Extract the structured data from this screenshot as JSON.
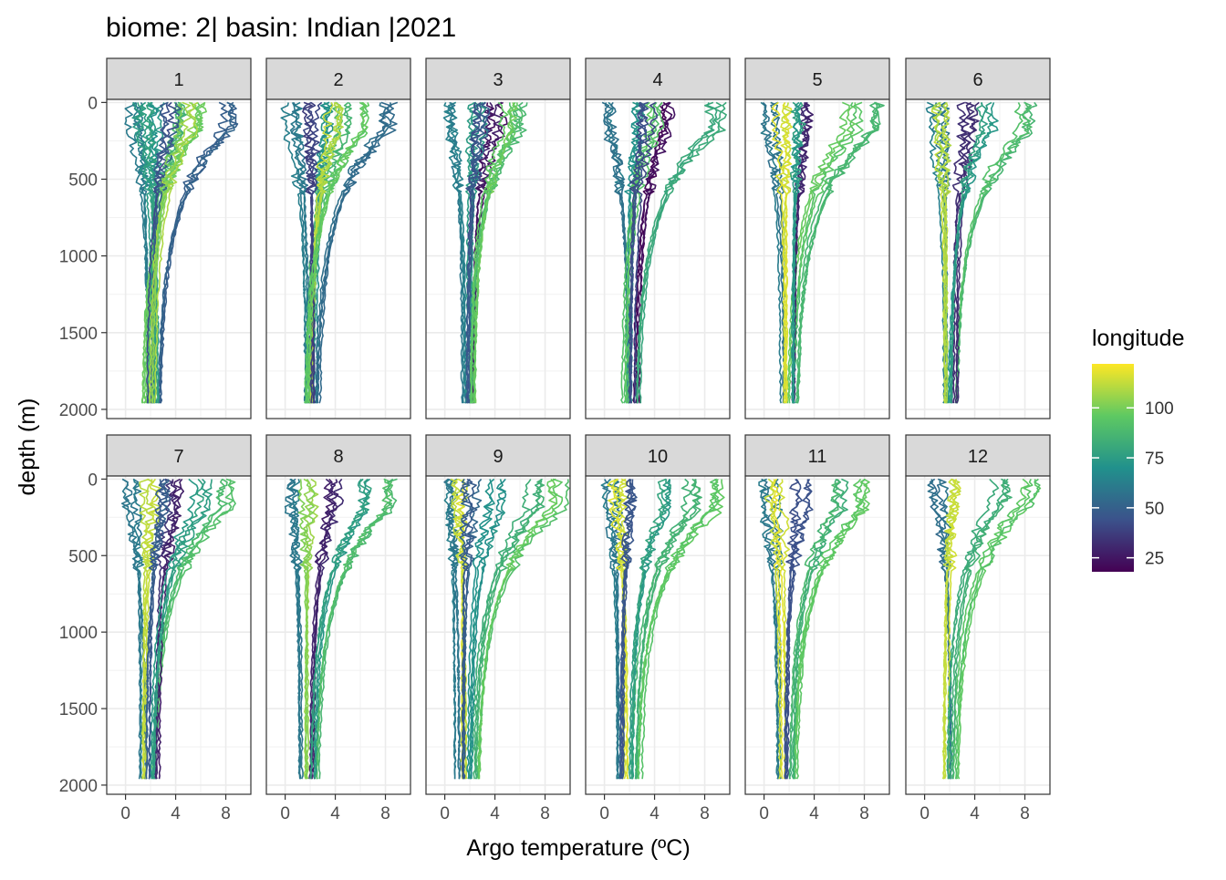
{
  "chart_data": {
    "type": "line",
    "title": "biome: 2| basin: Indian |2021",
    "xlabel": "Argo temperature (ºC)",
    "ylabel": "depth (m)",
    "xlim": [
      -1.5,
      10
    ],
    "ylim": [
      2060,
      -20
    ],
    "x_ticks": [
      0,
      4,
      8
    ],
    "x_tick_labels": [
      "0",
      "4",
      "8"
    ],
    "y_ticks": [
      0,
      500,
      1000,
      1500,
      2000
    ],
    "y_tick_labels": [
      "0",
      "500",
      "1000",
      "1500",
      "2000"
    ],
    "y_reversed": true,
    "grid": true,
    "legend": {
      "title": "longitude",
      "placement": "right",
      "type": "colorbar",
      "range": [
        18,
        122
      ],
      "ticks": [
        25,
        50,
        75,
        100
      ],
      "tick_labels": [
        "25",
        "50",
        "75",
        "100"
      ],
      "colors": [
        "#440154",
        "#3b528b",
        "#21918c",
        "#5ec962",
        "#fde725"
      ]
    },
    "panels": [
      {
        "label": "1",
        "profiles": [
          {
            "longitude": 60,
            "surface_temp": 0.5,
            "deep_temp": 1.8
          },
          {
            "longitude": 70,
            "surface_temp": 2.5,
            "deep_temp": 2.2
          },
          {
            "longitude": 52,
            "surface_temp": 8.0,
            "deep_temp": 2.6
          },
          {
            "longitude": 85,
            "surface_temp": 4.5,
            "deep_temp": 2.0
          },
          {
            "longitude": 95,
            "surface_temp": 6.0,
            "deep_temp": 1.5
          },
          {
            "longitude": 78,
            "surface_temp": 1.5,
            "deep_temp": 2.4
          },
          {
            "longitude": 45,
            "surface_temp": 3.5,
            "deep_temp": 1.9
          },
          {
            "longitude": 105,
            "surface_temp": 5.0,
            "deep_temp": 2.1
          }
        ]
      },
      {
        "label": "2",
        "profiles": [
          {
            "longitude": 60,
            "surface_temp": 0.5,
            "deep_temp": 1.7
          },
          {
            "longitude": 70,
            "surface_temp": 3.0,
            "deep_temp": 2.3
          },
          {
            "longitude": 55,
            "surface_temp": 8.0,
            "deep_temp": 2.5
          },
          {
            "longitude": 85,
            "surface_temp": 4.5,
            "deep_temp": 1.9
          },
          {
            "longitude": 110,
            "surface_temp": 4.0,
            "deep_temp": 2.0
          },
          {
            "longitude": 40,
            "surface_temp": 2.0,
            "deep_temp": 2.2
          },
          {
            "longitude": 95,
            "surface_temp": 6.0,
            "deep_temp": 1.6
          }
        ]
      },
      {
        "label": "3",
        "profiles": [
          {
            "longitude": 60,
            "surface_temp": 0.5,
            "deep_temp": 1.6
          },
          {
            "longitude": 25,
            "surface_temp": 4.0,
            "deep_temp": 2.4
          },
          {
            "longitude": 75,
            "surface_temp": 2.5,
            "deep_temp": 2.0
          },
          {
            "longitude": 90,
            "surface_temp": 6.0,
            "deep_temp": 2.2
          },
          {
            "longitude": 45,
            "surface_temp": 3.0,
            "deep_temp": 1.8
          },
          {
            "longitude": 100,
            "surface_temp": 5.0,
            "deep_temp": 2.1
          }
        ]
      },
      {
        "label": "4",
        "profiles": [
          {
            "longitude": 60,
            "surface_temp": 0.5,
            "deep_temp": 1.8
          },
          {
            "longitude": 20,
            "surface_temp": 5.0,
            "deep_temp": 2.5
          },
          {
            "longitude": 80,
            "surface_temp": 9.0,
            "deep_temp": 2.6
          },
          {
            "longitude": 70,
            "surface_temp": 2.5,
            "deep_temp": 2.0
          },
          {
            "longitude": 95,
            "surface_temp": 4.0,
            "deep_temp": 1.6
          },
          {
            "longitude": 40,
            "surface_temp": 3.5,
            "deep_temp": 2.2
          }
        ]
      },
      {
        "label": "5",
        "profiles": [
          {
            "longitude": 60,
            "surface_temp": 0.5,
            "deep_temp": 1.5
          },
          {
            "longitude": 85,
            "surface_temp": 9.0,
            "deep_temp": 2.4
          },
          {
            "longitude": 95,
            "surface_temp": 7.0,
            "deep_temp": 2.0
          },
          {
            "longitude": 30,
            "surface_temp": 3.5,
            "deep_temp": 2.5
          },
          {
            "longitude": 115,
            "surface_temp": 1.5,
            "deep_temp": 1.7
          },
          {
            "longitude": 75,
            "surface_temp": 2.5,
            "deep_temp": 2.2
          }
        ]
      },
      {
        "label": "6",
        "profiles": [
          {
            "longitude": 60,
            "surface_temp": 1.0,
            "deep_temp": 1.6
          },
          {
            "longitude": 90,
            "surface_temp": 8.0,
            "deep_temp": 2.3
          },
          {
            "longitude": 110,
            "surface_temp": 1.5,
            "deep_temp": 1.8
          },
          {
            "longitude": 35,
            "surface_temp": 3.5,
            "deep_temp": 2.4
          },
          {
            "longitude": 75,
            "surface_temp": 5.0,
            "deep_temp": 2.0
          }
        ]
      },
      {
        "label": "7",
        "profiles": [
          {
            "longitude": 60,
            "surface_temp": 0.5,
            "deep_temp": 1.4
          },
          {
            "longitude": 90,
            "surface_temp": 8.0,
            "deep_temp": 2.2
          },
          {
            "longitude": 30,
            "surface_temp": 4.0,
            "deep_temp": 2.6
          },
          {
            "longitude": 110,
            "surface_temp": 2.0,
            "deep_temp": 1.6
          },
          {
            "longitude": 75,
            "surface_temp": 6.0,
            "deep_temp": 2.0
          },
          {
            "longitude": 50,
            "surface_temp": 3.0,
            "deep_temp": 1.8
          }
        ]
      },
      {
        "label": "8",
        "profiles": [
          {
            "longitude": 60,
            "surface_temp": 0.5,
            "deep_temp": 1.4
          },
          {
            "longitude": 90,
            "surface_temp": 8.0,
            "deep_temp": 2.4
          },
          {
            "longitude": 30,
            "surface_temp": 4.0,
            "deep_temp": 2.0
          },
          {
            "longitude": 75,
            "surface_temp": 6.0,
            "deep_temp": 2.2
          },
          {
            "longitude": 105,
            "surface_temp": 2.0,
            "deep_temp": 1.7
          }
        ]
      },
      {
        "label": "9",
        "profiles": [
          {
            "longitude": 60,
            "surface_temp": 0.5,
            "deep_temp": 1.0
          },
          {
            "longitude": 95,
            "surface_temp": 9.0,
            "deep_temp": 2.6
          },
          {
            "longitude": 85,
            "surface_temp": 7.0,
            "deep_temp": 2.2
          },
          {
            "longitude": 115,
            "surface_temp": 1.0,
            "deep_temp": 1.6
          },
          {
            "longitude": 70,
            "surface_temp": 4.0,
            "deep_temp": 2.0
          },
          {
            "longitude": 50,
            "surface_temp": 2.0,
            "deep_temp": 1.4
          }
        ]
      },
      {
        "label": "10",
        "profiles": [
          {
            "longitude": 60,
            "surface_temp": 0.5,
            "deep_temp": 1.2
          },
          {
            "longitude": 95,
            "surface_temp": 9.0,
            "deep_temp": 2.7
          },
          {
            "longitude": 85,
            "surface_temp": 7.0,
            "deep_temp": 2.3
          },
          {
            "longitude": 115,
            "surface_temp": 1.0,
            "deep_temp": 1.7
          },
          {
            "longitude": 75,
            "surface_temp": 5.0,
            "deep_temp": 2.0
          },
          {
            "longitude": 45,
            "surface_temp": 2.5,
            "deep_temp": 1.5
          }
        ]
      },
      {
        "label": "11",
        "profiles": [
          {
            "longitude": 60,
            "surface_temp": 0.5,
            "deep_temp": 1.2
          },
          {
            "longitude": 95,
            "surface_temp": 8.0,
            "deep_temp": 2.5
          },
          {
            "longitude": 85,
            "surface_temp": 6.0,
            "deep_temp": 2.1
          },
          {
            "longitude": 115,
            "surface_temp": 1.0,
            "deep_temp": 1.5
          },
          {
            "longitude": 45,
            "surface_temp": 3.0,
            "deep_temp": 1.8
          }
        ]
      },
      {
        "label": "12",
        "profiles": [
          {
            "longitude": 55,
            "surface_temp": 1.0,
            "deep_temp": 2.2
          },
          {
            "longitude": 115,
            "surface_temp": 2.0,
            "deep_temp": 1.7
          },
          {
            "longitude": 95,
            "surface_temp": 8.5,
            "deep_temp": 2.4
          },
          {
            "longitude": 85,
            "surface_temp": 6.0,
            "deep_temp": 2.0
          }
        ]
      }
    ]
  }
}
